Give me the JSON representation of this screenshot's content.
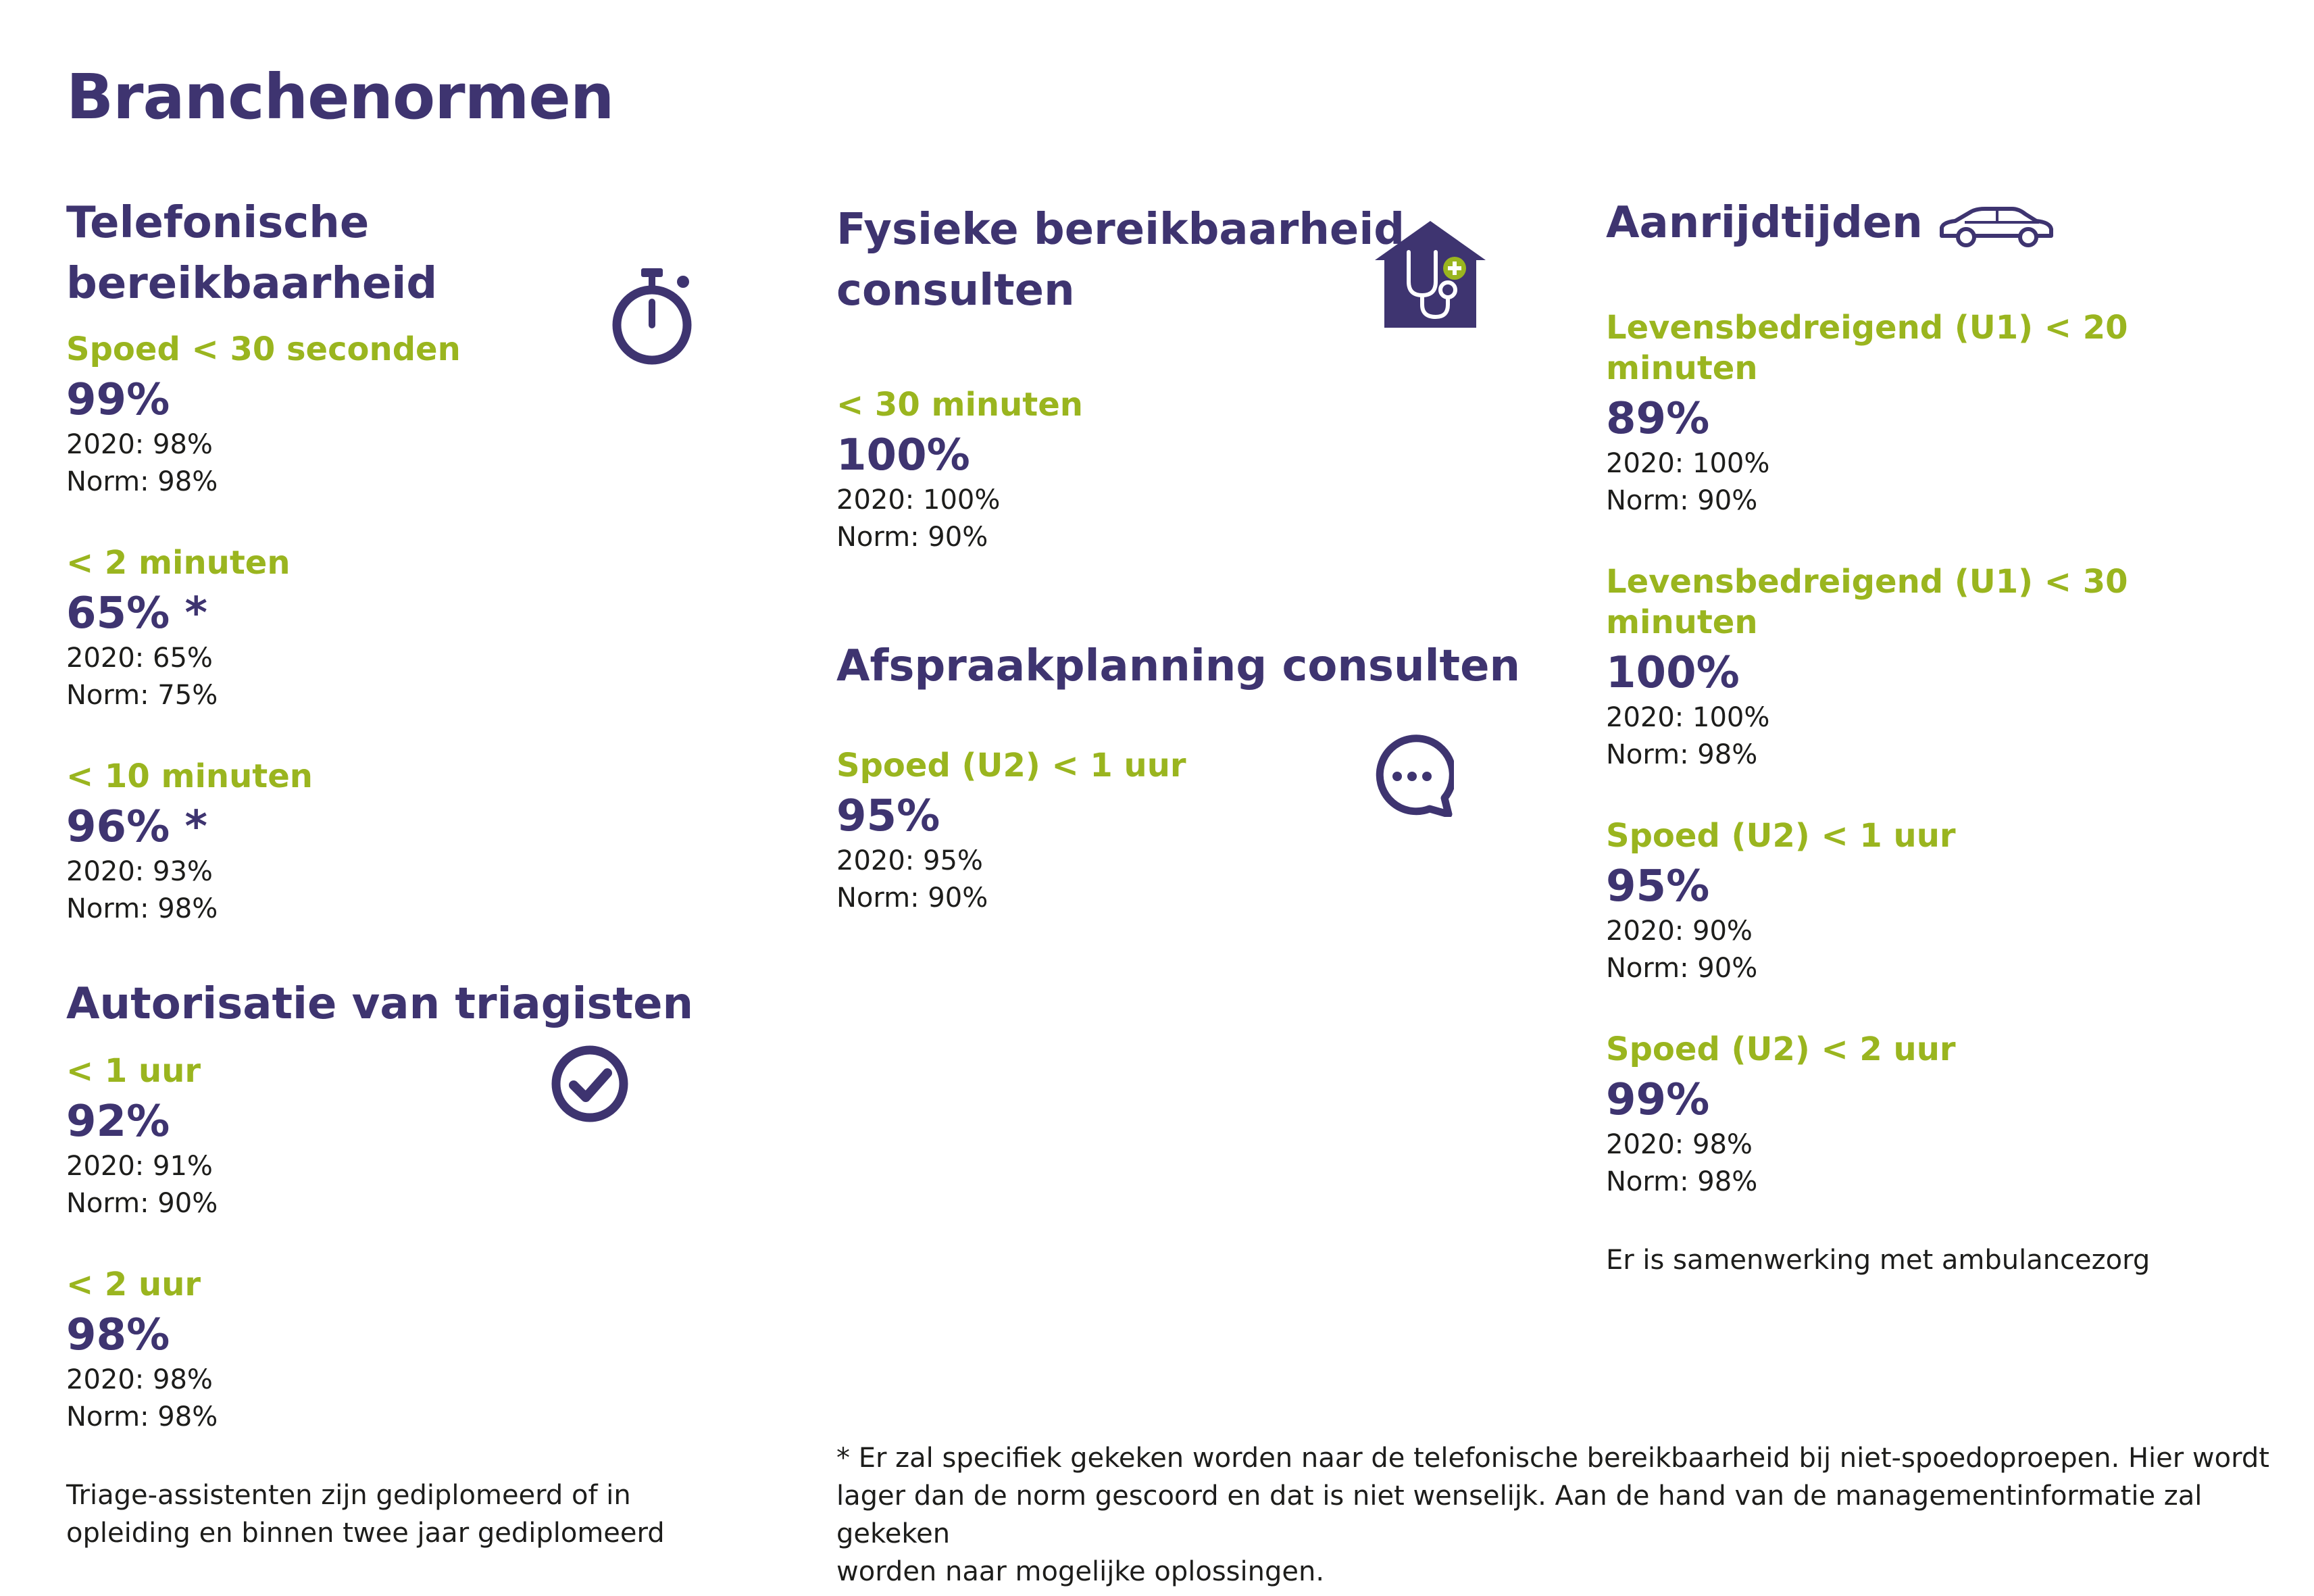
{
  "title": "Branchenormen",
  "telefonisch": {
    "title": "Telefonische bereikbaarheid",
    "metrics": [
      {
        "label": "Spoed < 30 seconden",
        "value": "99%",
        "prev": "2020: 98%",
        "norm": "Norm: 98%"
      },
      {
        "label": "< 2 minuten",
        "value": "65% *",
        "prev": "2020: 65%",
        "norm": "Norm: 75%"
      },
      {
        "label": "< 10 minuten",
        "value": "96% *",
        "prev": "2020: 93%",
        "norm": "Norm: 98%"
      }
    ]
  },
  "autorisatie": {
    "title": "Autorisatie van triagisten",
    "metrics": [
      {
        "label": "< 1 uur",
        "value": "92%",
        "prev": "2020: 91%",
        "norm": "Norm: 90%"
      },
      {
        "label": "< 2 uur",
        "value": "98%",
        "prev": "2020: 98%",
        "norm": "Norm: 98%"
      }
    ],
    "note_line1": "Triage-assistenten zijn gediplomeerd of in",
    "note_line2": "opleiding en binnen twee jaar gediplomeerd"
  },
  "fysiek": {
    "title_line1": "Fysieke bereikbaarheid",
    "title_line2": "consulten",
    "metrics": [
      {
        "label": "< 30 minuten",
        "value": "100%",
        "prev": "2020: 100%",
        "norm": "Norm: 90%"
      }
    ]
  },
  "afspraak": {
    "title": "Afspraakplanning consulten",
    "metrics": [
      {
        "label": "Spoed (U2) < 1 uur",
        "value": "95%",
        "prev": "2020: 95%",
        "norm": "Norm: 90%"
      }
    ]
  },
  "aanrijd": {
    "title": "Aanrijdtijden",
    "metrics": [
      {
        "label": "Levensbedreigend (U1) < 20 minuten",
        "value": "89%",
        "prev": "2020: 100%",
        "norm": "Norm: 90%"
      },
      {
        "label": "Levensbedreigend (U1) < 30 minuten",
        "value": "100%",
        "prev": "2020: 100%",
        "norm": "Norm: 98%"
      },
      {
        "label": "Spoed (U2) < 1 uur",
        "value": "95%",
        "prev": "2020: 90%",
        "norm": "Norm: 90%"
      },
      {
        "label": "Spoed (U2) < 2 uur",
        "value": "99%",
        "prev": "2020: 98%",
        "norm": "Norm: 98%"
      }
    ],
    "note": "Er is samenwerking met ambulancezorg"
  },
  "footnote": {
    "line1": "* Er zal specifiek gekeken worden naar de telefonische bereikbaarheid bij niet-spoedoproepen. Hier wordt",
    "line2": "lager dan de norm gescoord en dat is niet wenselijk. Aan de hand van de managementinformatie zal gekeken",
    "line3": "worden naar mogelijke oplossingen."
  },
  "icons": {
    "stopwatch": "stopwatch-icon",
    "checkmark": "check-circle-icon",
    "house": "house-medical-icon",
    "chat": "chat-bubble-icon",
    "car": "car-icon"
  },
  "colors": {
    "purple": "#3e3470",
    "green": "#9ab51f"
  }
}
